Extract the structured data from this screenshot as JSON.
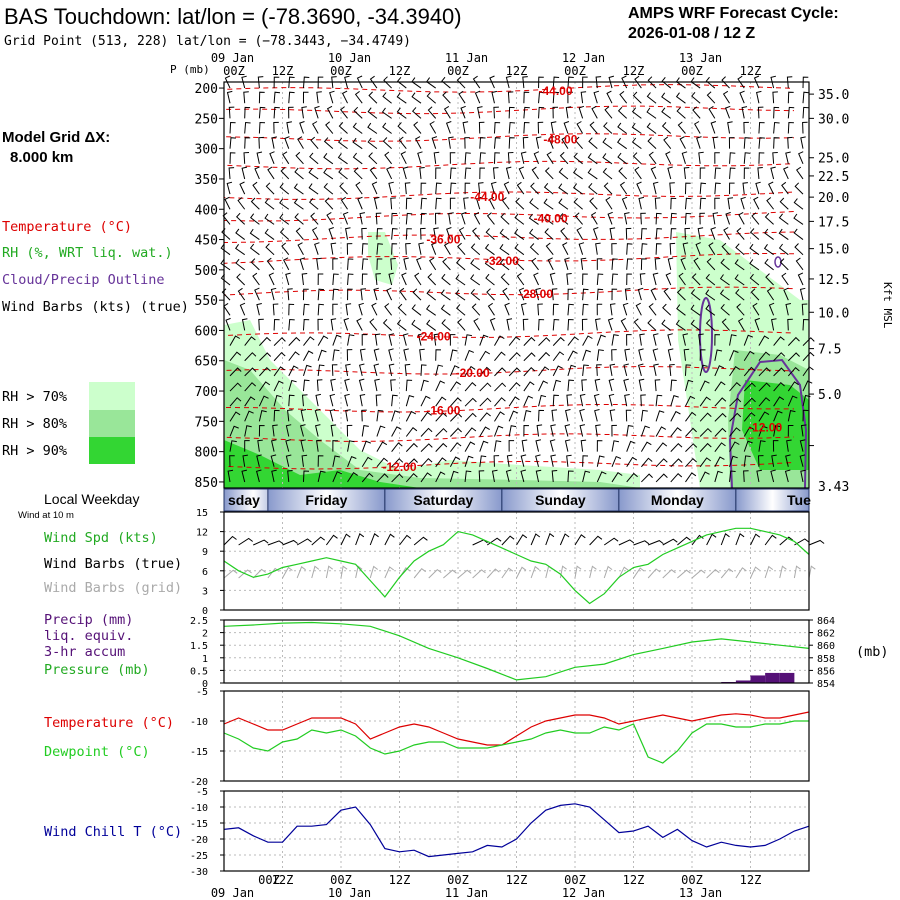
{
  "header": {
    "title": "BAS Touchdown:  lat/lon = (-78.3690, -34.3940)",
    "grid_point": "Grid Point (513, 228) lat/lon = (−78.3443, −34.4749)",
    "cycle_label": "AMPS WRF Forecast Cycle:",
    "cycle_value": "2026-01-08 / 12  Z"
  },
  "left_legend": {
    "model_grid_label": "Model Grid ΔX:",
    "model_grid_value": "8.000 km",
    "temperature": "Temperature (°C)",
    "rh": "RH (%, WRT liq. wat.)",
    "cloud": "Cloud/Precip Outline",
    "wind": "Wind Barbs (kts) (true)",
    "rh_levels": [
      "RH > 70%",
      "RH > 80%",
      "RH > 90%"
    ],
    "rh_colors": [
      "#ccffcc",
      "#99e699",
      "#33d633"
    ]
  },
  "time_axis": {
    "top_dates": [
      "09 Jan",
      "10 Jan",
      "11 Jan",
      "12 Jan",
      "13 Jan"
    ],
    "hour_labels": [
      "00Z",
      "12Z",
      "00Z",
      "12Z",
      "00Z",
      "12Z",
      "00Z",
      "12Z",
      "00Z",
      "12Z"
    ],
    "bottom_dates": [
      "09 Jan",
      "10 Jan",
      "11 Jan",
      "12 Jan",
      "13 Jan"
    ]
  },
  "weekday_bar": {
    "label": "Local Weekday",
    "days": [
      "sday",
      "Friday",
      "Saturday",
      "Sunday",
      "Monday",
      "Tue"
    ]
  },
  "surface_legend": {
    "wind_at": "Wind at 10 m",
    "wind_spd": "Wind Spd (kts)",
    "barbs_true": "Wind Barbs (true)",
    "barbs_grid": "Wind Barbs (grid)",
    "precip": [
      "Precip (mm)",
      "liq. equiv.",
      "3-hr accum"
    ],
    "pressure": "Pressure (mb)",
    "pressure_unit": "(mb)",
    "temperature": "Temperature (°C)",
    "dewpoint": "Dewpoint (°C)",
    "wind_chill": "Wind Chill T (°C)"
  },
  "colors": {
    "temp": "#dd0000",
    "rh": "#22aa22",
    "cloud": "#663399",
    "wind": "#000000",
    "grid_wind": "#aaaaaa",
    "dewpoint": "#22cc22",
    "windchill": "#000099",
    "precip": "#551177"
  },
  "chart_data": [
    {
      "type": "heatmap",
      "xlabel": "",
      "ylabel": "P (mb)",
      "y2label": "Kft MSL",
      "y_ticks": [
        200,
        250,
        300,
        350,
        400,
        450,
        500,
        550,
        600,
        650,
        700,
        750,
        800,
        850
      ],
      "y2_ticks": [
        "35.0",
        "30.0",
        "25.0",
        "22.5",
        "20.0",
        "17.5",
        "15.0",
        "12.5",
        "10.0",
        "7.5",
        "5.0",
        "3.43"
      ],
      "y2_ticks_at_p": [
        210,
        250,
        315,
        345,
        380,
        420,
        465,
        515,
        570,
        630,
        705,
        790
      ],
      "ylim": [
        190,
        860
      ],
      "x_hours": [
        0,
        120
      ],
      "temperature_labels": [
        {
          "text": "-44.00",
          "x": 68,
          "p": 205
        },
        {
          "text": "-48.00",
          "x": 69,
          "p": 285
        },
        {
          "text": "-44.00",
          "x": 54,
          "p": 380
        },
        {
          "text": "-40.00",
          "x": 67,
          "p": 415
        },
        {
          "text": "-36.00",
          "x": 45,
          "p": 450
        },
        {
          "text": "-32.00",
          "x": 57,
          "p": 485
        },
        {
          "text": "-28.00",
          "x": 64,
          "p": 540
        },
        {
          "text": "-24.00",
          "x": 43,
          "p": 610
        },
        {
          "text": "-20.00",
          "x": 51,
          "p": 670
        },
        {
          "text": "-16.00",
          "x": 45,
          "p": 732
        },
        {
          "text": "-12.00",
          "x": 36,
          "p": 825
        },
        {
          "text": "-12.00",
          "x": 111,
          "p": 760
        }
      ]
    },
    {
      "type": "line",
      "title": "",
      "ylim": [
        0,
        15
      ],
      "y_ticks": [
        0,
        3,
        6,
        9,
        12,
        15
      ],
      "x": [
        0,
        3,
        6,
        9,
        12,
        15,
        18,
        21,
        24,
        27,
        30,
        33,
        36,
        39,
        42,
        45,
        48,
        51,
        54,
        57,
        60,
        63,
        66,
        69,
        72,
        75,
        78,
        81,
        84,
        87,
        90,
        93,
        96,
        99,
        102,
        105,
        108,
        111,
        114,
        117,
        120
      ],
      "series": [
        {
          "name": "Wind Spd (kts)",
          "values": [
            7.5,
            6,
            5,
            5.5,
            6.5,
            7,
            7.5,
            8,
            7.5,
            7,
            4.5,
            2,
            5,
            7.5,
            9,
            10,
            12,
            11.5,
            10.5,
            9.5,
            8.5,
            7.5,
            7,
            5.5,
            3,
            1,
            2.5,
            5,
            6.5,
            7,
            8.5,
            9.5,
            10.5,
            11.5,
            12,
            12.5,
            12.5,
            12,
            11.5,
            10.5,
            8.5
          ]
        }
      ]
    },
    {
      "type": "line",
      "ylim": [
        0,
        2.5
      ],
      "y_ticks": [
        0.0,
        0.5,
        1.0,
        1.5,
        2.0,
        2.5
      ],
      "y2lim": [
        854,
        864
      ],
      "y2_ticks": [
        854,
        856,
        858,
        860,
        862,
        864
      ],
      "x": [
        0,
        6,
        12,
        18,
        24,
        30,
        36,
        42,
        48,
        54,
        60,
        66,
        72,
        78,
        84,
        90,
        96,
        102,
        108,
        114,
        120
      ],
      "series": [
        {
          "name": "Pressure (mb)",
          "values": [
            863,
            863.2,
            863.5,
            863.6,
            863.4,
            863,
            861.5,
            859.5,
            858,
            856.3,
            854.5,
            855,
            856.5,
            857,
            858.5,
            859.5,
            860.5,
            861,
            860.5,
            860,
            859.5
          ]
        }
      ],
      "precip_bars": {
        "x": [
          105,
          108,
          111,
          114,
          117
        ],
        "values": [
          0.04,
          0.1,
          0.3,
          0.4,
          0.4
        ]
      }
    },
    {
      "type": "line",
      "ylim": [
        -20,
        -5
      ],
      "y_ticks": [
        -20,
        -15,
        -10,
        -5
      ],
      "x": [
        0,
        3,
        6,
        9,
        12,
        15,
        18,
        21,
        24,
        27,
        30,
        33,
        36,
        39,
        42,
        45,
        48,
        51,
        54,
        57,
        60,
        63,
        66,
        69,
        72,
        75,
        78,
        81,
        84,
        87,
        90,
        93,
        96,
        99,
        102,
        105,
        108,
        111,
        114,
        117,
        120
      ],
      "series": [
        {
          "name": "Temperature (°C)",
          "values": [
            -10.5,
            -9.5,
            -10.5,
            -11.5,
            -11.5,
            -10.5,
            -9.5,
            -9.5,
            -9.5,
            -10.5,
            -13,
            -12,
            -11,
            -10.5,
            -11,
            -12,
            -13,
            -13.5,
            -14,
            -14,
            -12.5,
            -11,
            -10,
            -9.5,
            -9,
            -9,
            -9.5,
            -10.5,
            -10,
            -9.5,
            -9,
            -9.5,
            -10,
            -9.5,
            -9,
            -8.8,
            -9,
            -9.5,
            -9.5,
            -9,
            -8.5
          ]
        },
        {
          "name": "Dewpoint (°C)",
          "values": [
            -12,
            -13,
            -14.5,
            -15,
            -13.5,
            -13,
            -11.5,
            -12,
            -11.5,
            -12.5,
            -14.5,
            -15.5,
            -15,
            -14,
            -13.5,
            -13.5,
            -14.5,
            -14.5,
            -14.5,
            -14,
            -13.5,
            -13,
            -12,
            -11.5,
            -12,
            -12,
            -11,
            -11.5,
            -10.5,
            -16,
            -17,
            -15,
            -12,
            -10.5,
            -10.5,
            -11,
            -11,
            -10.5,
            -10.5,
            -10,
            -10
          ]
        }
      ]
    },
    {
      "type": "line",
      "ylim": [
        -30,
        -5
      ],
      "y_ticks": [
        -30,
        -25,
        -20,
        -15,
        -10,
        -5
      ],
      "x": [
        0,
        3,
        6,
        9,
        12,
        15,
        18,
        21,
        24,
        27,
        30,
        33,
        36,
        39,
        42,
        45,
        48,
        51,
        54,
        57,
        60,
        63,
        66,
        69,
        72,
        75,
        78,
        81,
        84,
        87,
        90,
        93,
        96,
        99,
        102,
        105,
        108,
        111,
        114,
        117,
        120
      ],
      "series": [
        {
          "name": "Wind Chill T (°C)",
          "values": [
            -17,
            -16.5,
            -19,
            -21,
            -21,
            -16,
            -16,
            -15.5,
            -11,
            -10,
            -15.5,
            -23,
            -24,
            -23.5,
            -25.5,
            -25,
            -24.5,
            -24,
            -22,
            -22.5,
            -20,
            -15,
            -11,
            -9.5,
            -9,
            -10,
            -14,
            -18,
            -17.5,
            -16,
            -19.5,
            -17,
            -20.5,
            -22.5,
            -21,
            -22,
            -22.5,
            -22,
            -20,
            -17.5,
            -16
          ]
        }
      ]
    }
  ]
}
